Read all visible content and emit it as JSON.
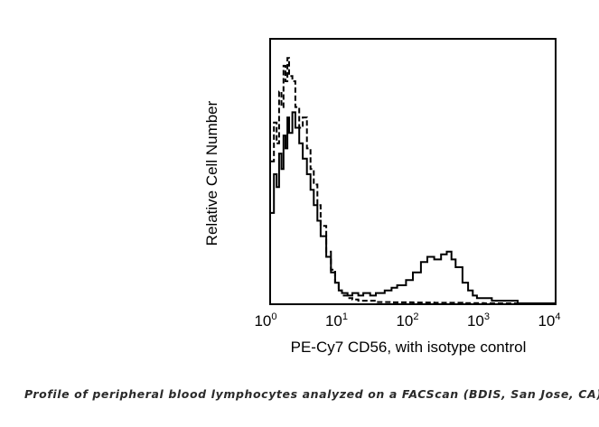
{
  "chart_data": {
    "type": "line",
    "title": "",
    "xlabel": "PE-Cy7 CD56, with isotype control",
    "ylabel": "Relative Cell Number",
    "x_scale": "log",
    "xlim": [
      1,
      10000
    ],
    "ylim": [
      0,
      1
    ],
    "grid": false,
    "legend": "none",
    "x_ticks": [
      {
        "base": "10",
        "exp": "0",
        "value": 1
      },
      {
        "base": "10",
        "exp": "1",
        "value": 10
      },
      {
        "base": "10",
        "exp": "2",
        "value": 100
      },
      {
        "base": "10",
        "exp": "3",
        "value": 1000
      },
      {
        "base": "10",
        "exp": "4",
        "value": 10000
      }
    ],
    "series": [
      {
        "style": "solid",
        "color": "#000000",
        "x": [
          1.0,
          1.1,
          1.2,
          1.3,
          1.4,
          1.5,
          1.6,
          1.7,
          1.8,
          2.0,
          2.2,
          2.5,
          2.8,
          3.2,
          3.6,
          4.0,
          4.5,
          5,
          6,
          7,
          8,
          9,
          10,
          12,
          14,
          17,
          20,
          25,
          30,
          40,
          50,
          60,
          80,
          100,
          130,
          160,
          200,
          250,
          300,
          350,
          400,
          500,
          600,
          700,
          800,
          1000,
          1300,
          1600,
          2000,
          3000,
          5000,
          10000
        ],
        "y": [
          0.35,
          0.5,
          0.45,
          0.58,
          0.52,
          0.65,
          0.6,
          0.72,
          0.66,
          0.74,
          0.68,
          0.62,
          0.56,
          0.5,
          0.44,
          0.38,
          0.32,
          0.26,
          0.18,
          0.12,
          0.08,
          0.05,
          0.04,
          0.03,
          0.04,
          0.03,
          0.04,
          0.03,
          0.04,
          0.05,
          0.06,
          0.07,
          0.09,
          0.12,
          0.16,
          0.18,
          0.17,
          0.19,
          0.2,
          0.17,
          0.14,
          0.08,
          0.05,
          0.03,
          0.02,
          0.02,
          0.01,
          0.01,
          0.01,
          0.0,
          0.0,
          0.0
        ]
      },
      {
        "style": "dashed",
        "color": "#000000",
        "x": [
          1.0,
          1.1,
          1.2,
          1.3,
          1.4,
          1.5,
          1.6,
          1.7,
          1.8,
          2.0,
          2.2,
          2.5,
          2.8,
          3.2,
          3.6,
          4.0,
          4.5,
          5,
          6,
          7,
          8,
          9,
          10,
          12,
          14,
          17,
          20,
          30,
          50,
          100,
          200,
          500,
          1000,
          10000
        ],
        "y": [
          0.55,
          0.7,
          0.62,
          0.82,
          0.76,
          0.92,
          0.86,
          0.95,
          0.88,
          0.86,
          0.76,
          0.68,
          0.72,
          0.6,
          0.52,
          0.46,
          0.38,
          0.3,
          0.2,
          0.13,
          0.08,
          0.05,
          0.03,
          0.02,
          0.015,
          0.01,
          0.01,
          0.005,
          0.004,
          0.003,
          0.002,
          0.001,
          0.0,
          0.0
        ]
      }
    ]
  },
  "caption": "Profile of peripheral blood lymphocytes analyzed on a FACScan (BDIS, San Jose, CA)"
}
